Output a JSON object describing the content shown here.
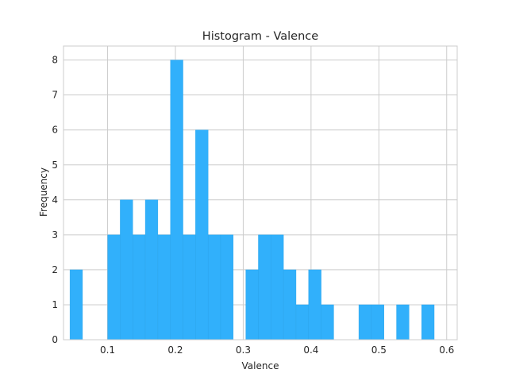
{
  "chart_data": {
    "type": "bar",
    "title": "Histogram - Valence",
    "xlabel": "Valence",
    "ylabel": "Frequency",
    "xlim": [
      0.035,
      0.6155
    ],
    "ylim": [
      0,
      8.4
    ],
    "xticks": [
      0.1,
      0.2,
      0.3,
      0.4,
      0.5,
      0.6
    ],
    "xtick_labels": [
      "0.1",
      "0.2",
      "0.3",
      "0.4",
      "0.5",
      "0.6"
    ],
    "yticks": [
      0,
      1,
      2,
      3,
      4,
      5,
      6,
      7,
      8
    ],
    "ytick_labels": [
      "0",
      "1",
      "2",
      "3",
      "4",
      "5",
      "6",
      "7",
      "8"
    ],
    "bin_start": 0.0445,
    "bin_width": 0.01852,
    "counts": [
      2,
      0,
      0,
      3,
      4,
      3,
      4,
      3,
      8,
      3,
      6,
      3,
      3,
      0,
      2,
      3,
      3,
      2,
      1,
      2,
      1,
      0,
      0,
      1,
      1,
      0,
      1,
      0,
      1
    ],
    "bar_color": "#31b0fb",
    "grid": true,
    "legend": "none"
  }
}
